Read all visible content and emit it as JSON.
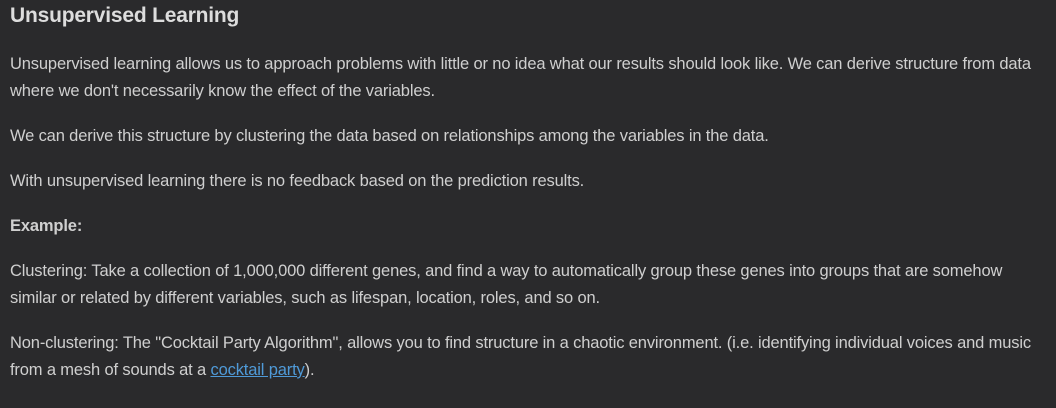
{
  "heading": "Unsupervised Learning",
  "paragraphs": {
    "intro": "Unsupervised learning allows us to approach problems with little or no idea what our results should look like. We can derive structure from data where we don't necessarily know the effect of the variables.",
    "structure": "We can derive this structure by clustering the data based on relationships among the variables in the data.",
    "feedback": "With unsupervised learning there is no feedback based on the prediction results.",
    "example_label": "Example:",
    "clustering": "Clustering: Take a collection of 1,000,000 different genes, and find a way to automatically group these genes into groups that are somehow similar or related by different variables, such as lifespan, location, roles, and so on.",
    "nonclustering_before": "Non-clustering: The \"Cocktail Party Algorithm\", allows you to find structure in a chaotic environment. (i.e. identifying individual voices and music from a mesh of sounds at a ",
    "nonclustering_link": "cocktail party",
    "nonclustering_after": ")."
  },
  "colors": {
    "background": "#2a2a2c",
    "text": "#cfcfcf",
    "heading": "#dddddd",
    "link": "#4f9ad8"
  }
}
